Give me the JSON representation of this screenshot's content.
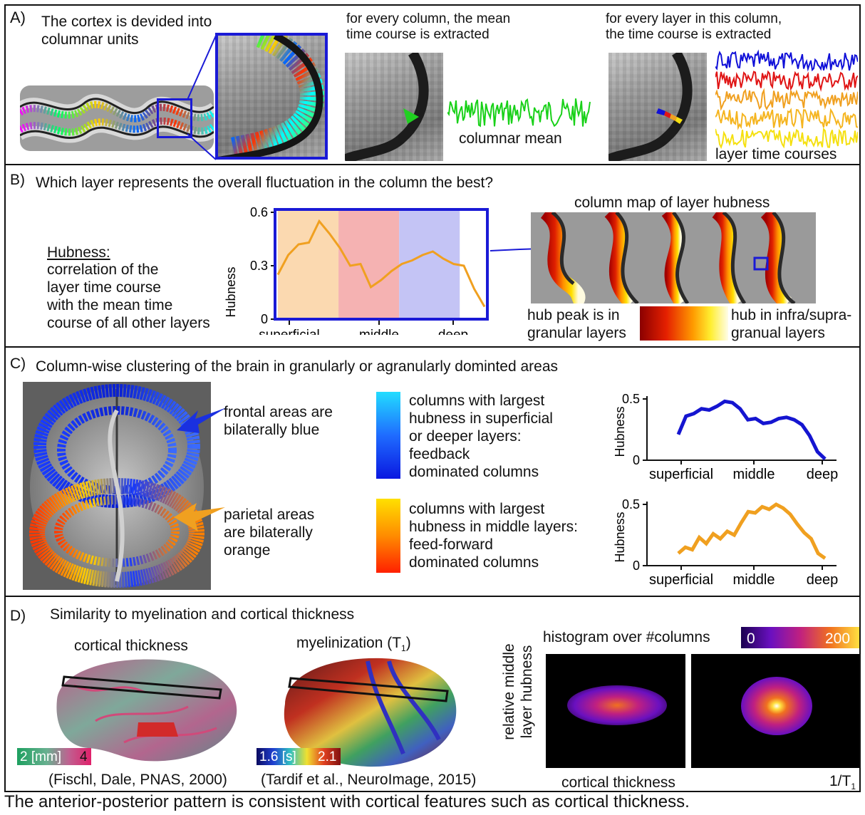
{
  "panelA": {
    "label": "A)",
    "title": "The cortex is devided into\ncolumnar units",
    "mid_caption": "for every column, the mean\ntime course is extracted",
    "mid_trace_label": "columnar mean",
    "right_caption": "for every layer in this column,\nthe time course is extracted",
    "right_trace_label": "layer time courses",
    "colors": {
      "box": "#1a1ad6",
      "mean": "#19d119",
      "layers": [
        "#1010d8",
        "#e01515",
        "#f0a020",
        "#f5b520",
        "#f5e010"
      ]
    }
  },
  "panelB": {
    "label": "B)",
    "question": "Which layer represents the overall fluctuation in the column the best?",
    "def_title": "Hubness:",
    "def_text": "correlation of the\nlayer time course\nwith the mean time\ncourse of all other layers",
    "map_title": "column map of layer hubness",
    "cbar_left": "hub peak is in\ngranular layers",
    "cbar_right": "hub in infra/supra-\ngranual layers",
    "chart_data": {
      "type": "line",
      "ylabel": "Hubness",
      "yticks": [
        "0",
        "0.3",
        "0.6"
      ],
      "ylim": [
        0,
        0.6
      ],
      "xticks": [
        "superficial",
        "middle",
        "deep"
      ],
      "series": [
        {
          "values": [
            0.25,
            0.36,
            0.42,
            0.43,
            0.55,
            0.48,
            0.4,
            0.3,
            0.31,
            0.18,
            0.22,
            0.27,
            0.31,
            0.33,
            0.36,
            0.38,
            0.34,
            0.31,
            0.3,
            0.17,
            0.07
          ]
        }
      ],
      "bands": [
        "superficial",
        "middle",
        "deep"
      ],
      "colors": {
        "line": "#f0a020",
        "band1": "#fbd9b0",
        "band2": "#f5b2b2",
        "band3": "#c4c4f5",
        "frame": "#1a1ad6"
      }
    }
  },
  "panelC": {
    "label": "C)",
    "title": "Column-wise clustering of the brain in granularly or agranularly dominted areas",
    "frontal_note": "frontal areas are\nbilaterally blue",
    "parietal_note": "parietal areas\nare bilaterally\norange",
    "blue_legend": "columns with largest\nhubness in superficial\nor deeper layers:\nfeedback\ndominated columns",
    "orange_legend": "columns with largest\nhubness in middle layers:\nfeed-forward\ndominated columns",
    "chart_data": [
      {
        "type": "line",
        "ylabel": "Hubness",
        "yticks": [
          "0",
          "0.5"
        ],
        "ylim": [
          0,
          0.5
        ],
        "xticks": [
          "superficial",
          "middle",
          "deep"
        ],
        "series": [
          {
            "values": [
              0.21,
              0.36,
              0.38,
              0.42,
              0.41,
              0.44,
              0.48,
              0.47,
              0.42,
              0.33,
              0.34,
              0.3,
              0.31,
              0.34,
              0.35,
              0.33,
              0.29,
              0.2,
              0.07,
              0.01
            ]
          }
        ],
        "color": "#1515d0"
      },
      {
        "type": "line",
        "ylabel": "Hubness",
        "yticks": [
          "0",
          "0.5"
        ],
        "ylim": [
          0,
          0.5
        ],
        "xticks": [
          "superficial",
          "middle",
          "deep"
        ],
        "series": [
          {
            "values": [
              0.1,
              0.15,
              0.13,
              0.23,
              0.18,
              0.26,
              0.22,
              0.28,
              0.25,
              0.35,
              0.44,
              0.43,
              0.48,
              0.46,
              0.5,
              0.47,
              0.42,
              0.34,
              0.27,
              0.22,
              0.1,
              0.06
            ]
          }
        ],
        "color": "#f0a020"
      }
    ]
  },
  "panelD": {
    "label": "D)",
    "title": "Similarity to myelination and cortical thickness",
    "thick_title": "cortical thickness",
    "thick_scale_lo": "2 [mm]",
    "thick_scale_hi": "4",
    "thick_cite": "(Fischl, Dale, PNAS, 2000)",
    "myel_title": "myelinization (T",
    "myel_sub": "1",
    "myel_close": ")",
    "myel_scale_lo": "1.6 [s]",
    "myel_scale_hi": "2.1",
    "myel_cite": "(Tardif et al., NeuroImage, 2015)",
    "hist_title": "histogram over #columns",
    "hist_cbar_lo": "0",
    "hist_cbar_hi": "200",
    "hist_ylabel": "relative middle\nlayer hubness",
    "hist_x1": "cortical thickness",
    "hist_x2": "1/T",
    "hist_x2_sub": "1"
  },
  "footer": "The anterior-posterior pattern is consistent with cortical features such as cortical thickness."
}
